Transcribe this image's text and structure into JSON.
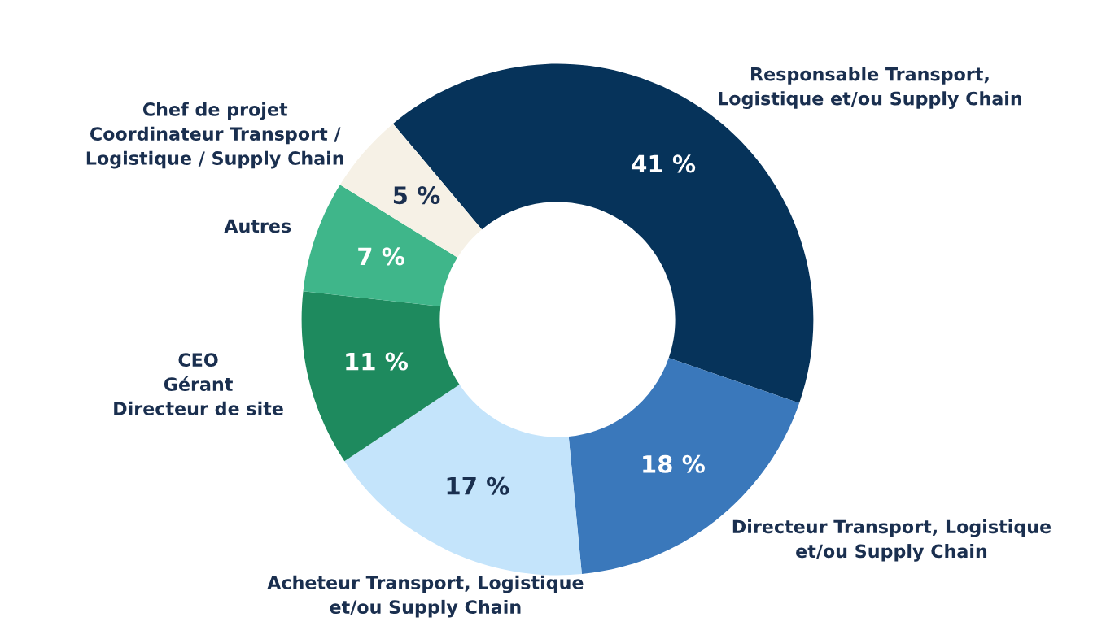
{
  "chart_data": {
    "type": "donut",
    "categories": [
      "Responsable Transport,\nLogistique et/ou Supply Chain",
      "Directeur Transport, Logistique\net/ou Supply Chain",
      "Acheteur Transport, Logistique\net/ou Supply Chain",
      "CEO\nGérant\nDirecteur de site",
      "Autres",
      "Chef de projet\nCoordinateur Transport /\nLogistique / Supply Chain"
    ],
    "values": [
      41,
      18,
      17,
      11,
      7,
      5
    ],
    "value_labels": [
      "41 %",
      "18 %",
      "17 %",
      "11 %",
      "7 %",
      "5 %"
    ],
    "colors": [
      "#06335a",
      "#3a78bb",
      "#c4e4fb",
      "#1e8a5e",
      "#3fb68a",
      "#f6f1e6"
    ],
    "legend": false
  }
}
